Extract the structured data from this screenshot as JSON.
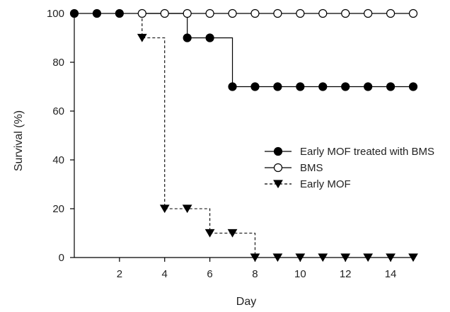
{
  "chart_data": {
    "type": "line",
    "title": "",
    "xlabel": "Day",
    "ylabel": "Survival (%)",
    "xlim": [
      0,
      15
    ],
    "ylim": [
      0,
      100
    ],
    "x_ticks": [
      2,
      4,
      6,
      8,
      10,
      12,
      14
    ],
    "y_ticks": [
      0,
      20,
      40,
      60,
      80,
      100
    ],
    "grid": false,
    "legend_position": "center-right",
    "step": true,
    "series": [
      {
        "name": "Early MOF treated with BMS",
        "marker": "filled-circle",
        "line": "solid",
        "color": "#000000",
        "x": [
          0,
          1,
          2,
          5,
          6,
          7,
          8,
          9,
          10,
          11,
          12,
          13,
          14,
          15
        ],
        "y": [
          100,
          100,
          100,
          90,
          90,
          70,
          70,
          70,
          70,
          70,
          70,
          70,
          70,
          70
        ],
        "step_to": [
          [
            5,
            90
          ],
          [
            7,
            70
          ]
        ]
      },
      {
        "name": "BMS",
        "marker": "open-circle",
        "line": "solid",
        "color": "#000000",
        "x": [
          3,
          4,
          5,
          6,
          7,
          8,
          9,
          10,
          11,
          12,
          13,
          14,
          15
        ],
        "y": [
          100,
          100,
          100,
          100,
          100,
          100,
          100,
          100,
          100,
          100,
          100,
          100,
          100
        ]
      },
      {
        "name": "Early MOF",
        "marker": "filled-triangle-down",
        "line": "dashed",
        "color": "#000000",
        "x": [
          3,
          4,
          5,
          6,
          7,
          8,
          9,
          10,
          11,
          12,
          13,
          14,
          15
        ],
        "y": [
          90,
          20,
          20,
          10,
          10,
          0,
          0,
          0,
          0,
          0,
          0,
          0,
          0
        ]
      }
    ]
  }
}
